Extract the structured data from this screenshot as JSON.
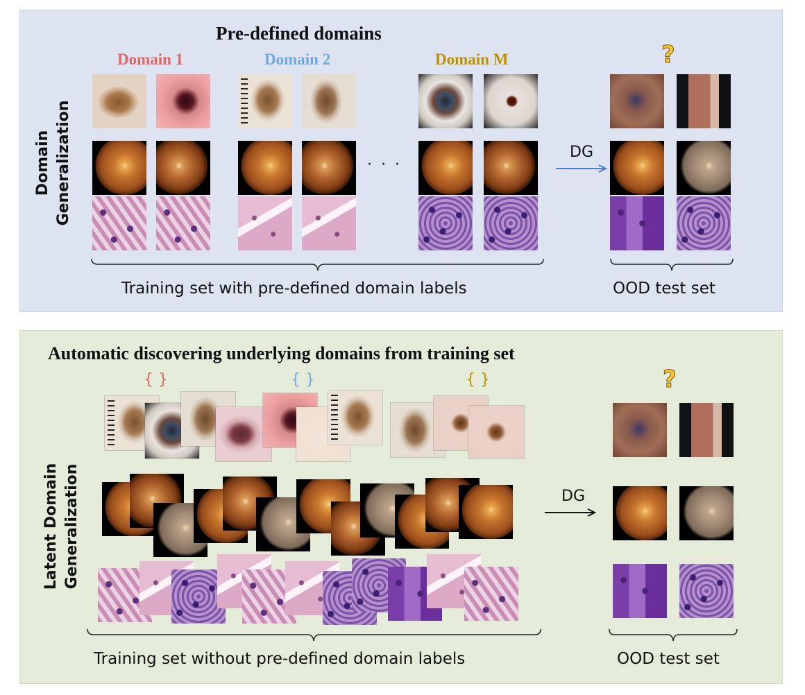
{
  "top_panel": {
    "title": "Pre-defined domains",
    "side_label_line1": "Domain",
    "side_label_line2": "Generalization",
    "domains": [
      {
        "label": "Domain 1",
        "color": "#e06666"
      },
      {
        "label": "Domain 2",
        "color": "#6fa8dc"
      },
      {
        "label": "Domain M",
        "color": "#bf9000"
      }
    ],
    "ellipsis": "· · ·",
    "arrow_label": "DG",
    "question_mark": "?",
    "train_caption": "Training set with pre-defined domain labels",
    "test_caption": "OOD test set"
  },
  "bottom_panel": {
    "title": "Automatic discovering underlying domains from training set",
    "side_label_line1": "Latent Domain",
    "side_label_line2": "Generalization",
    "brace_groups": [
      {
        "symbol": "{ }",
        "color": "#e06666"
      },
      {
        "symbol": "{ }",
        "color": "#6fa8dc"
      },
      {
        "symbol": "{ }",
        "color": "#bf9000"
      }
    ],
    "arrow_label": "DG",
    "question_mark": "?",
    "train_caption": "Training set  without pre-defined domain labels",
    "test_caption": "OOD test set"
  },
  "colors": {
    "top_background": "#dde3f1",
    "bottom_background": "#e4ecd9",
    "top_arrow": "#4a7bd0",
    "bottom_arrow": "#111111",
    "question_mark": "#f2c53a"
  },
  "icons": [
    "dermoscopy-image",
    "fundus-image",
    "histology-image",
    "curly-bracket",
    "arrow-right",
    "question-mark-icon"
  ]
}
